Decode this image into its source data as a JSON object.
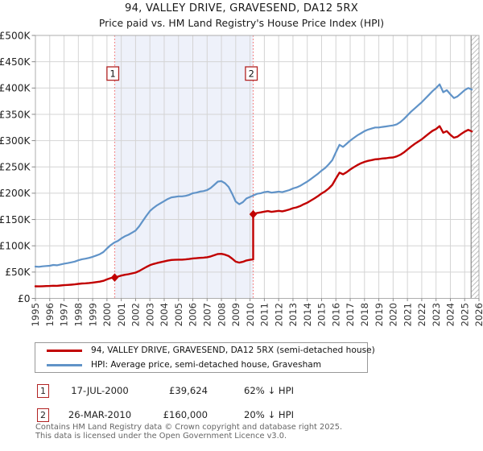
{
  "title": "94, VALLEY DRIVE, GRAVESEND, DA12 5RX",
  "subtitle": "Price paid vs. HM Land Registry's House Price Index (HPI)",
  "colors": {
    "property_line": "#c10000",
    "hpi_line": "#6093c8",
    "sale_dash": "#f47c7c",
    "shade": "#eef1fa",
    "grid": "#d4d4d4",
    "border": "#adadad",
    "hatch": "#c0c0c0",
    "hatch_edge": "#8c8c8c",
    "marker_box_border": "#b22222",
    "tick": "#888888"
  },
  "chart_data": {
    "type": "line",
    "xlim_years": [
      1995,
      2026
    ],
    "ylim_thousands": [
      0,
      500
    ],
    "grid": true,
    "legend_position": "bottom",
    "y_unit": "GBP thousands",
    "y_tick_labels": [
      "£0",
      "£50K",
      "£100K",
      "£150K",
      "£200K",
      "£250K",
      "£300K",
      "£350K",
      "£400K",
      "£450K",
      "£500K"
    ],
    "x_label_years": [
      "1995",
      "1996",
      "1997",
      "1998",
      "1999",
      "2000",
      "2001",
      "2002",
      "2003",
      "2004",
      "2005",
      "2006",
      "2007",
      "2008",
      "2009",
      "2010",
      "2011",
      "2012",
      "2013",
      "2014",
      "2015",
      "2016",
      "2017",
      "2018",
      "2019",
      "2020",
      "2021",
      "2022",
      "2023",
      "2024",
      "2025",
      "2026"
    ],
    "shaded_span_years": [
      2000.54,
      2010.22
    ],
    "hatched_span_years": [
      2025.45,
      2026
    ],
    "series": [
      {
        "name": "HPI: Average price, semi-detached house, Gravesham",
        "color_key": "hpi_line",
        "width": 2.2,
        "data_name": "hpi-line",
        "points_year_gbpk": [
          [
            1995,
            60.5
          ],
          [
            1995.25,
            60
          ],
          [
            1995.5,
            61
          ],
          [
            1995.75,
            61.5
          ],
          [
            1996,
            62
          ],
          [
            1996.25,
            63.5
          ],
          [
            1996.5,
            63
          ],
          [
            1996.75,
            64.5
          ],
          [
            1997,
            66
          ],
          [
            1997.25,
            67
          ],
          [
            1997.5,
            68.5
          ],
          [
            1997.75,
            70
          ],
          [
            1998,
            72.5
          ],
          [
            1998.25,
            74.5
          ],
          [
            1998.5,
            75.5
          ],
          [
            1998.75,
            77
          ],
          [
            1999,
            79
          ],
          [
            1999.25,
            81.5
          ],
          [
            1999.5,
            84
          ],
          [
            1999.75,
            88
          ],
          [
            2000,
            95
          ],
          [
            2000.25,
            101
          ],
          [
            2000.5,
            106
          ],
          [
            2000.75,
            109
          ],
          [
            2001,
            114
          ],
          [
            2001.25,
            118
          ],
          [
            2001.5,
            121
          ],
          [
            2001.75,
            125
          ],
          [
            2002,
            129
          ],
          [
            2002.25,
            137
          ],
          [
            2002.5,
            147
          ],
          [
            2002.75,
            157
          ],
          [
            2003,
            166
          ],
          [
            2003.25,
            172
          ],
          [
            2003.5,
            177
          ],
          [
            2003.75,
            181
          ],
          [
            2004,
            185
          ],
          [
            2004.25,
            189
          ],
          [
            2004.5,
            192
          ],
          [
            2004.75,
            193
          ],
          [
            2005,
            194
          ],
          [
            2005.25,
            194
          ],
          [
            2005.5,
            195
          ],
          [
            2005.75,
            197
          ],
          [
            2006,
            200
          ],
          [
            2006.25,
            201
          ],
          [
            2006.5,
            203
          ],
          [
            2006.75,
            204
          ],
          [
            2007,
            206
          ],
          [
            2007.25,
            210
          ],
          [
            2007.5,
            216
          ],
          [
            2007.75,
            222
          ],
          [
            2008,
            223
          ],
          [
            2008.25,
            219
          ],
          [
            2008.5,
            212
          ],
          [
            2008.75,
            199
          ],
          [
            2009,
            184
          ],
          [
            2009.25,
            179
          ],
          [
            2009.5,
            183
          ],
          [
            2009.75,
            190
          ],
          [
            2010,
            193
          ],
          [
            2010.25,
            196
          ],
          [
            2010.5,
            199
          ],
          [
            2010.75,
            200
          ],
          [
            2011,
            202
          ],
          [
            2011.25,
            203
          ],
          [
            2011.5,
            201
          ],
          [
            2011.75,
            202
          ],
          [
            2012,
            203
          ],
          [
            2012.25,
            202
          ],
          [
            2012.5,
            204
          ],
          [
            2012.75,
            206
          ],
          [
            2013,
            209
          ],
          [
            2013.25,
            211
          ],
          [
            2013.5,
            214
          ],
          [
            2013.75,
            218
          ],
          [
            2014,
            222
          ],
          [
            2014.25,
            227
          ],
          [
            2014.5,
            232
          ],
          [
            2014.75,
            237
          ],
          [
            2015,
            243
          ],
          [
            2015.25,
            248
          ],
          [
            2015.5,
            255
          ],
          [
            2015.75,
            263
          ],
          [
            2016,
            278
          ],
          [
            2016.25,
            292
          ],
          [
            2016.5,
            288
          ],
          [
            2016.75,
            294
          ],
          [
            2017,
            300
          ],
          [
            2017.25,
            305
          ],
          [
            2017.5,
            310
          ],
          [
            2017.75,
            314
          ],
          [
            2018,
            318
          ],
          [
            2018.25,
            321
          ],
          [
            2018.5,
            323
          ],
          [
            2018.75,
            325
          ],
          [
            2019,
            325
          ],
          [
            2019.25,
            326
          ],
          [
            2019.5,
            327
          ],
          [
            2019.75,
            328
          ],
          [
            2020,
            329
          ],
          [
            2020.25,
            331
          ],
          [
            2020.5,
            335
          ],
          [
            2020.75,
            341
          ],
          [
            2021,
            348
          ],
          [
            2021.25,
            355
          ],
          [
            2021.5,
            361
          ],
          [
            2021.75,
            367
          ],
          [
            2022,
            373
          ],
          [
            2022.25,
            380
          ],
          [
            2022.5,
            387
          ],
          [
            2022.75,
            394
          ],
          [
            2023,
            400
          ],
          [
            2023.25,
            407
          ],
          [
            2023.5,
            392
          ],
          [
            2023.75,
            396
          ],
          [
            2024,
            388
          ],
          [
            2024.25,
            381
          ],
          [
            2024.5,
            384
          ],
          [
            2024.75,
            390
          ],
          [
            2025,
            396
          ],
          [
            2025.25,
            400
          ],
          [
            2025.5,
            397
          ]
        ]
      },
      {
        "name": "94, VALLEY DRIVE, GRAVESEND, DA12 5RX (semi-detached house)",
        "color_key": "property_line",
        "width": 2.4,
        "data_name": "property-price-line",
        "points_year_gbpk": [
          [
            1995,
            23
          ],
          [
            1995.25,
            22.8
          ],
          [
            1995.5,
            23.2
          ],
          [
            1995.75,
            23.4
          ],
          [
            1996,
            23.6
          ],
          [
            1996.25,
            24.1
          ],
          [
            1996.5,
            23.9
          ],
          [
            1996.75,
            24.5
          ],
          [
            1997,
            25.1
          ],
          [
            1997.25,
            25.5
          ],
          [
            1997.5,
            26
          ],
          [
            1997.75,
            26.6
          ],
          [
            1998,
            27.6
          ],
          [
            1998.25,
            28.3
          ],
          [
            1998.5,
            28.7
          ],
          [
            1998.75,
            29.3
          ],
          [
            1999,
            30
          ],
          [
            1999.25,
            31
          ],
          [
            1999.5,
            31.9
          ],
          [
            1999.75,
            33.4
          ],
          [
            2000,
            36.1
          ],
          [
            2000.25,
            38.4
          ],
          [
            2000.5,
            40.3
          ],
          [
            2000.75,
            41.4
          ],
          [
            2001,
            43.3
          ],
          [
            2001.25,
            44.8
          ],
          [
            2001.5,
            46
          ],
          [
            2001.75,
            47.5
          ],
          [
            2002,
            49
          ],
          [
            2002.25,
            52.1
          ],
          [
            2002.5,
            55.9
          ],
          [
            2002.75,
            59.7
          ],
          [
            2003,
            63.1
          ],
          [
            2003.25,
            65.4
          ],
          [
            2003.5,
            67.3
          ],
          [
            2003.75,
            68.8
          ],
          [
            2004,
            70.3
          ],
          [
            2004.25,
            71.8
          ],
          [
            2004.5,
            73
          ],
          [
            2004.75,
            73.3
          ],
          [
            2005,
            73.7
          ],
          [
            2005.25,
            73.7
          ],
          [
            2005.5,
            74.1
          ],
          [
            2005.75,
            74.9
          ],
          [
            2006,
            76
          ],
          [
            2006.25,
            76.4
          ],
          [
            2006.5,
            77.1
          ],
          [
            2006.75,
            77.5
          ],
          [
            2007,
            78.3
          ],
          [
            2007.25,
            79.8
          ],
          [
            2007.5,
            82.1
          ],
          [
            2007.75,
            84.4
          ],
          [
            2008,
            84.7
          ],
          [
            2008.25,
            83.2
          ],
          [
            2008.5,
            80.6
          ],
          [
            2008.75,
            75.6
          ],
          [
            2009,
            69.9
          ],
          [
            2009.25,
            68
          ],
          [
            2009.5,
            69.5
          ],
          [
            2009.75,
            72.2
          ],
          [
            2010,
            73.3
          ],
          [
            2010.22,
            74.1
          ],
          [
            2010.22,
            160
          ],
          [
            2010.25,
            160.5
          ],
          [
            2010.5,
            162.5
          ],
          [
            2010.75,
            163.5
          ],
          [
            2011,
            165
          ],
          [
            2011.25,
            166
          ],
          [
            2011.5,
            164.5
          ],
          [
            2011.75,
            165.5
          ],
          [
            2012,
            166.5
          ],
          [
            2012.25,
            165.5
          ],
          [
            2012.5,
            167
          ],
          [
            2012.75,
            169
          ],
          [
            2013,
            171.5
          ],
          [
            2013.25,
            173
          ],
          [
            2013.5,
            175.5
          ],
          [
            2013.75,
            179
          ],
          [
            2014,
            182
          ],
          [
            2014.25,
            186
          ],
          [
            2014.5,
            190
          ],
          [
            2014.75,
            194.5
          ],
          [
            2015,
            199.5
          ],
          [
            2015.25,
            203.5
          ],
          [
            2015.5,
            209
          ],
          [
            2015.75,
            216
          ],
          [
            2016,
            228
          ],
          [
            2016.25,
            239
          ],
          [
            2016.5,
            236
          ],
          [
            2016.75,
            240
          ],
          [
            2017,
            245
          ],
          [
            2017.25,
            249.5
          ],
          [
            2017.5,
            253.5
          ],
          [
            2017.75,
            257
          ],
          [
            2018,
            259.5
          ],
          [
            2018.25,
            261.5
          ],
          [
            2018.5,
            263
          ],
          [
            2018.75,
            264.5
          ],
          [
            2019,
            265
          ],
          [
            2019.25,
            266
          ],
          [
            2019.5,
            266.5
          ],
          [
            2019.75,
            267.5
          ],
          [
            2020,
            268
          ],
          [
            2020.25,
            270
          ],
          [
            2020.5,
            273
          ],
          [
            2020.75,
            277.5
          ],
          [
            2021,
            283
          ],
          [
            2021.25,
            288.5
          ],
          [
            2021.5,
            293.5
          ],
          [
            2021.75,
            298
          ],
          [
            2022,
            302.5
          ],
          [
            2022.25,
            308
          ],
          [
            2022.5,
            313.5
          ],
          [
            2022.75,
            318.5
          ],
          [
            2023,
            322
          ],
          [
            2023.25,
            327.5
          ],
          [
            2023.5,
            315
          ],
          [
            2023.75,
            318
          ],
          [
            2024,
            311
          ],
          [
            2024.25,
            305.5
          ],
          [
            2024.5,
            307.5
          ],
          [
            2024.75,
            312.5
          ],
          [
            2025,
            317
          ],
          [
            2025.25,
            320.5
          ],
          [
            2025.5,
            317.5
          ]
        ]
      }
    ],
    "sale_markers": [
      {
        "label": "1",
        "year": 2000.54,
        "price_gbpk": 39.624
      },
      {
        "label": "2",
        "year": 2010.22,
        "price_gbpk": 160
      }
    ]
  },
  "legend": {
    "items": [
      {
        "label": "94, VALLEY DRIVE, GRAVESEND, DA12 5RX (semi-detached house)",
        "color_key": "property_line"
      },
      {
        "label": "HPI: Average price, semi-detached house, Gravesham",
        "color_key": "hpi_line"
      }
    ]
  },
  "transactions": [
    {
      "num": "1",
      "date": "17-JUL-2000",
      "price": "£39,624",
      "vs_hpi": "62% ↓ HPI"
    },
    {
      "num": "2",
      "date": "26-MAR-2010",
      "price": "£160,000",
      "vs_hpi": "20% ↓ HPI"
    }
  ],
  "footer": {
    "line1": "Contains HM Land Registry data © Crown copyright and database right 2025.",
    "line2": "This data is licensed under the Open Government Licence v3.0."
  }
}
